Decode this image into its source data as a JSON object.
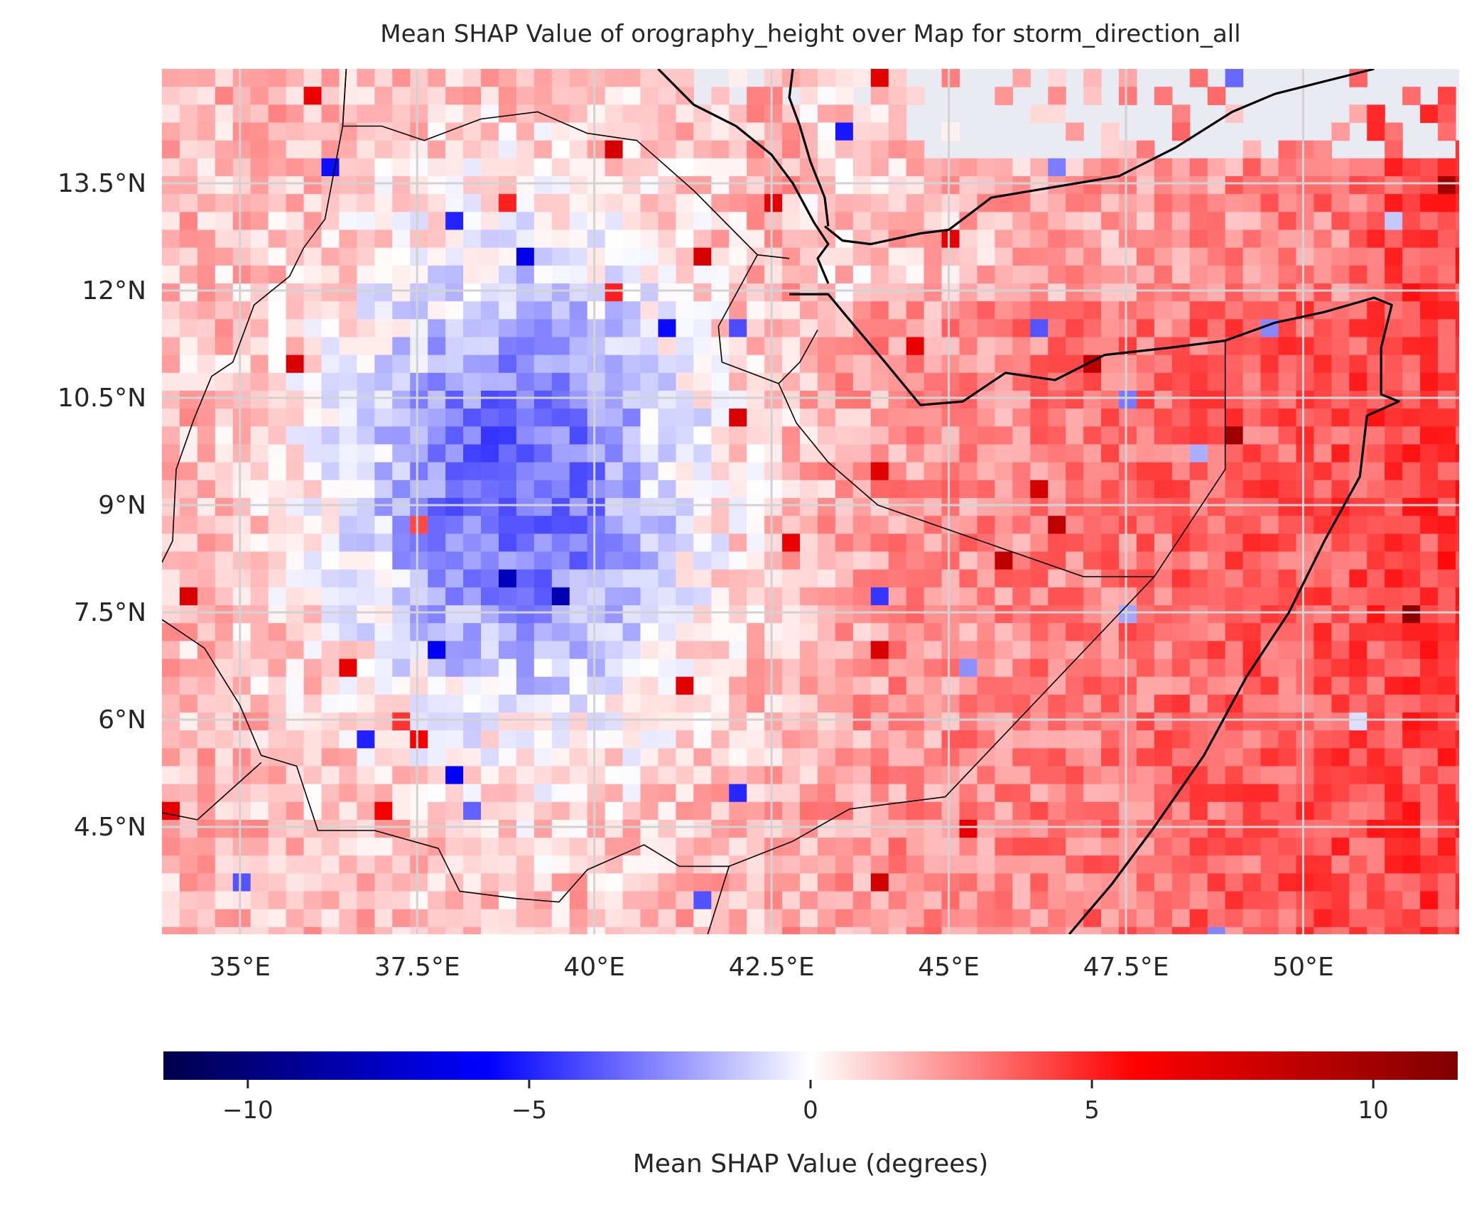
{
  "title": "Mean SHAP Value of orography_height over Map for storm_direction_all",
  "map": {
    "lon_range": [
      33.9,
      52.2
    ],
    "lat_range": [
      3.0,
      15.1
    ],
    "lon_ticks": [
      {
        "value": 35.0,
        "label": "35°E"
      },
      {
        "value": 37.5,
        "label": "37.5°E"
      },
      {
        "value": 40.0,
        "label": "40°E"
      },
      {
        "value": 42.5,
        "label": "42.5°E"
      },
      {
        "value": 45.0,
        "label": "45°E"
      },
      {
        "value": 47.5,
        "label": "47.5°E"
      },
      {
        "value": 50.0,
        "label": "50°E"
      }
    ],
    "lat_ticks": [
      {
        "value": 13.5,
        "label": "13.5°N"
      },
      {
        "value": 12.0,
        "label": "12°N"
      },
      {
        "value": 10.5,
        "label": "10.5°N"
      },
      {
        "value": 9.0,
        "label": "9°N"
      },
      {
        "value": 7.5,
        "label": "7.5°N"
      },
      {
        "value": 6.0,
        "label": "6°N"
      },
      {
        "value": 4.5,
        "label": "4.5°N"
      }
    ],
    "grid": true,
    "background_color": "#eaeaf2",
    "colormap": "seismic",
    "value_range": [
      -11.5,
      11.5
    ]
  },
  "colorbar": {
    "label": "Mean SHAP Value (degrees)",
    "orientation": "horizontal",
    "range": [
      -11.5,
      11.5
    ],
    "ticks": [
      {
        "value": -10,
        "label": "−10"
      },
      {
        "value": -5,
        "label": "−5"
      },
      {
        "value": 0,
        "label": "0"
      },
      {
        "value": 5,
        "label": "5"
      },
      {
        "value": 10,
        "label": "10"
      }
    ]
  }
}
